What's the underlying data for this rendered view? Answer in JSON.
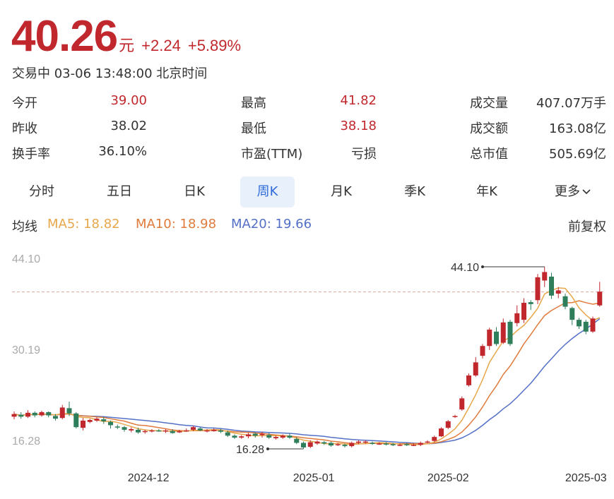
{
  "quote": {
    "price": "40.26",
    "unit": "元",
    "change": "+2.24",
    "change_pct": "+5.89%",
    "status": "交易中 03-06 13:48:00 北京时间"
  },
  "stats": [
    [
      {
        "label": "今开",
        "value": "39.00",
        "color": "up"
      },
      {
        "label": "最高",
        "value": "41.82",
        "color": "up"
      },
      {
        "label": "成交量",
        "value": "407.07万手",
        "color": ""
      }
    ],
    [
      {
        "label": "昨收",
        "value": "38.02",
        "color": ""
      },
      {
        "label": "最低",
        "value": "38.18",
        "color": "up"
      },
      {
        "label": "成交额",
        "value": "163.08亿",
        "color": ""
      }
    ],
    [
      {
        "label": "换手率",
        "value": "36.10%",
        "color": ""
      },
      {
        "label": "市盈(TTM)",
        "value": "亏损",
        "color": ""
      },
      {
        "label": "总市值",
        "value": "505.69亿",
        "color": ""
      }
    ]
  ],
  "tabs": [
    "分时",
    "五日",
    "日K",
    "周K",
    "月K",
    "季K",
    "年K",
    "更多"
  ],
  "active_tab": "周K",
  "ma": {
    "label": "均线",
    "ma5": "MA5: 18.82",
    "ma10": "MA10: 18.98",
    "ma20": "MA20: 19.66",
    "adjust": "前复权"
  },
  "colors": {
    "up": "#c0282d",
    "down": "#2e7d5b",
    "ma5": "#e7a74b",
    "ma10": "#e07b3c",
    "ma20": "#5470c6",
    "accent": "#2f6bd8"
  },
  "chart_data": {
    "type": "candlestick",
    "y_ticks": [
      "44.10",
      "30.19",
      "16.28"
    ],
    "x_ticks": [
      "2024-12",
      "2025-01",
      "2025-02",
      "2025-03"
    ],
    "annotations": {
      "high": "44.10",
      "low": "16.28"
    },
    "candles": [
      [
        21.2,
        21.6,
        22.0,
        20.8
      ],
      [
        21.5,
        21.2,
        21.9,
        20.9
      ],
      [
        21.2,
        21.8,
        22.2,
        21.0
      ],
      [
        21.8,
        21.4,
        22.0,
        21.1
      ],
      [
        21.4,
        21.9,
        22.1,
        21.2
      ],
      [
        21.9,
        21.4,
        22.0,
        21.1
      ],
      [
        21.3,
        20.9,
        21.6,
        20.6
      ],
      [
        21.0,
        22.6,
        23.0,
        20.8
      ],
      [
        22.5,
        21.7,
        23.5,
        21.3
      ],
      [
        21.7,
        19.6,
        21.9,
        19.4
      ],
      [
        19.5,
        20.6,
        21.0,
        19.1
      ],
      [
        20.4,
        20.7,
        20.9,
        20.2
      ],
      [
        20.6,
        20.9,
        21.1,
        20.4
      ],
      [
        20.8,
        20.5,
        21.2,
        20.1
      ],
      [
        20.4,
        19.9,
        20.6,
        19.4
      ],
      [
        19.7,
        19.6,
        20.0,
        19.3
      ],
      [
        19.6,
        19.2,
        19.8,
        18.9
      ],
      [
        19.1,
        19.3,
        19.6,
        18.8
      ],
      [
        19.2,
        18.8,
        19.5,
        18.6
      ],
      [
        18.9,
        19.0,
        19.2,
        18.6
      ],
      [
        19.0,
        19.1,
        19.3,
        18.8
      ],
      [
        19.1,
        19.0,
        19.3,
        18.9
      ],
      [
        19.0,
        19.1,
        19.3,
        18.7
      ],
      [
        19.0,
        18.7,
        19.3,
        18.6
      ],
      [
        18.8,
        19.0,
        19.2,
        18.7
      ],
      [
        19.0,
        19.1,
        19.4,
        18.9
      ],
      [
        19.2,
        19.6,
        19.8,
        19.0
      ],
      [
        19.4,
        19.1,
        19.6,
        19.0
      ],
      [
        19.1,
        19.1,
        19.3,
        18.8
      ],
      [
        19.0,
        19.2,
        19.4,
        18.9
      ],
      [
        19.1,
        18.9,
        19.3,
        18.7
      ],
      [
        18.8,
        18.3,
        19.1,
        18.1
      ],
      [
        18.3,
        18.0,
        18.5,
        17.8
      ],
      [
        18.0,
        18.2,
        18.4,
        17.8
      ],
      [
        18.2,
        18.5,
        18.7,
        17.9
      ],
      [
        18.6,
        18.3,
        18.8,
        18.0
      ],
      [
        18.4,
        18.6,
        18.9,
        18.0
      ],
      [
        18.4,
        18.0,
        18.7,
        17.8
      ],
      [
        17.9,
        18.1,
        18.3,
        17.7
      ],
      [
        18.0,
        18.3,
        18.5,
        17.8
      ],
      [
        18.3,
        18.0,
        18.6,
        17.8
      ],
      [
        17.8,
        17.2,
        18.1,
        17.0
      ],
      [
        17.2,
        16.5,
        17.4,
        16.3
      ],
      [
        16.6,
        17.3,
        17.6,
        16.4
      ],
      [
        17.1,
        17.4,
        17.6,
        16.9
      ],
      [
        17.3,
        17.1,
        17.5,
        16.9
      ],
      [
        17.2,
        16.8,
        17.4,
        16.6
      ],
      [
        16.9,
        17.0,
        17.2,
        16.7
      ],
      [
        16.9,
        16.7,
        17.1,
        16.5
      ],
      [
        16.7,
        17.2,
        17.4,
        16.5
      ],
      [
        17.2,
        17.4,
        17.6,
        17.0
      ],
      [
        17.3,
        17.4,
        17.6,
        17.1
      ],
      [
        17.2,
        17.1,
        17.4,
        16.9
      ],
      [
        17.1,
        17.1,
        17.3,
        16.9
      ],
      [
        17.1,
        17.0,
        17.3,
        16.8
      ],
      [
        17.0,
        16.9,
        17.2,
        16.7
      ],
      [
        16.9,
        16.9,
        17.1,
        16.7
      ],
      [
        17.0,
        16.9,
        17.2,
        16.7
      ],
      [
        16.9,
        16.9,
        17.1,
        16.7
      ],
      [
        16.9,
        17.2,
        17.4,
        16.7
      ],
      [
        17.3,
        17.4,
        17.6,
        17.1
      ],
      [
        17.5,
        18.1,
        18.3,
        17.3
      ],
      [
        18.2,
        19.4,
        19.6,
        18.1
      ],
      [
        19.5,
        20.5,
        20.7,
        19.3
      ],
      [
        21.2,
        21.3,
        21.5,
        21.0
      ],
      [
        22.3,
        24.0,
        24.3,
        22.1
      ],
      [
        26.0,
        27.5,
        27.8,
        25.8
      ],
      [
        27.5,
        29.5,
        30.3,
        27.3
      ],
      [
        30.5,
        32.0,
        32.3,
        30.1
      ],
      [
        32.0,
        34.5,
        34.8,
        31.4
      ],
      [
        34.2,
        32.3,
        34.9,
        32.0
      ],
      [
        32.5,
        35.6,
        36.2,
        32.3
      ],
      [
        35.7,
        32.3,
        36.0,
        32.0
      ],
      [
        35.5,
        37.0,
        38.2,
        35.0
      ],
      [
        36.0,
        38.6,
        39.3,
        35.5
      ],
      [
        38.7,
        38.4,
        39.0,
        37.5
      ],
      [
        39.0,
        42.5,
        43.0,
        38.4
      ],
      [
        42.0,
        43.3,
        44.1,
        41.0
      ],
      [
        42.6,
        39.7,
        43.2,
        39.2
      ],
      [
        40.0,
        40.5,
        41.0,
        39.3
      ],
      [
        39.6,
        38.0,
        40.0,
        37.6
      ],
      [
        37.8,
        36.0,
        38.0,
        35.2
      ],
      [
        36.0,
        35.0,
        36.3,
        34.6
      ],
      [
        35.7,
        34.2,
        36.0,
        33.8
      ],
      [
        34.2,
        36.2,
        36.5,
        34.0
      ],
      [
        38.2,
        40.3,
        41.8,
        38.0
      ]
    ]
  }
}
